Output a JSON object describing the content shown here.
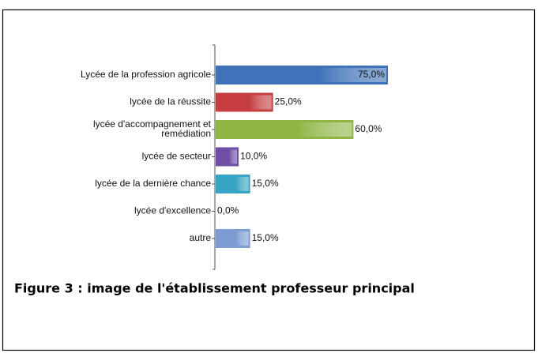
{
  "chart_data": {
    "type": "barh",
    "categories": [
      "Lycée de la profession agricole",
      "lycée de la réussite",
      "lycée d'accompagnement et remédiation",
      "lycée de secteur",
      "lycée de la dernière chance",
      "lycée d'excellence",
      "autre"
    ],
    "values": [
      75,
      25,
      60,
      10,
      15,
      0,
      15
    ],
    "value_labels": [
      "75,0%",
      "25,0%",
      "60,0%",
      "10,0%",
      "15,0%",
      "0,0%",
      "15,0%"
    ],
    "colors": [
      "#3f72b8",
      "#c63f40",
      "#8fb545",
      "#6f4ea6",
      "#36a4c2",
      "#8a8a8a",
      "#7c9dd4"
    ]
  },
  "caption": "Figure 3 : image de l'établissement professeur principal"
}
